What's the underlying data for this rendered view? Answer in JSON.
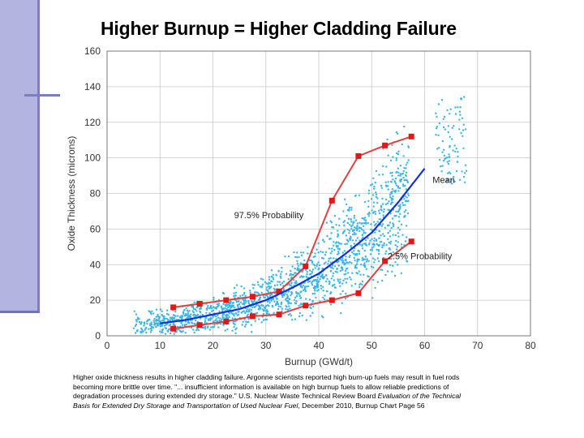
{
  "slide": {
    "title": "Higher Burnup = Higher Cladding Failure",
    "caption": {
      "line1": "Higher oxide thickness results in higher cladding failure. Argonne scientists reported high burn-up fuels may result in fuel rods",
      "line2": "becoming more brittle over time. \"... insufficient information is available on high burnup fuels to allow reliable predictions of",
      "line3_pre": "degradation processes during extended dry storage.\"  U.S. Nuclear Waste Technical Review Board ",
      "line3_italic": "Evaluation of the Technical",
      "line4_italic": "Basis for Extended Dry Storage and Transportation of Used Nuclear Fuel",
      "line4_post": ", December 2010, Burnup Chart Page 56"
    }
  },
  "colors": {
    "scatter": "#39b6e6",
    "mean": "#1530d8",
    "bound_line": "#e24040",
    "bound_marker": "#e01818",
    "lower_line": "#8a8a8a",
    "grid": "#c8c8c8",
    "accent_bar": "#b3b4df"
  },
  "chart_data": {
    "type": "scatter",
    "xlabel": "Burnup (GWd/t)",
    "ylabel": "Oxide Thickness (microns)",
    "xlim": [
      0,
      80
    ],
    "ylim": [
      0,
      160
    ],
    "x_ticks": [
      "0",
      "10",
      "20",
      "30",
      "40",
      "50",
      "60",
      "70",
      "80"
    ],
    "y_ticks": [
      "0",
      "20",
      "40",
      "60",
      "80",
      "100",
      "120",
      "140",
      "160"
    ],
    "grid": true,
    "series": [
      {
        "name": "97.5% Probability",
        "kind": "line-markers",
        "x": [
          12.5,
          17.5,
          22.5,
          27.5,
          32.5,
          37.5,
          42.5,
          47.5,
          52.5,
          57.5
        ],
        "y": [
          16,
          18,
          20,
          22,
          25,
          39,
          76,
          101,
          107,
          112
        ]
      },
      {
        "name": "Mean",
        "kind": "line",
        "x": [
          10,
          15,
          20,
          25,
          30,
          35,
          40,
          45,
          50,
          55,
          60
        ],
        "y": [
          7,
          9,
          12,
          15,
          20,
          27,
          35,
          46,
          58,
          75,
          94
        ]
      },
      {
        "name": "2.5% Probability",
        "kind": "line-markers",
        "x": [
          12.5,
          17.5,
          22.5,
          27.5,
          32.5,
          37.5,
          42.5,
          47.5,
          52.5,
          57.5
        ],
        "y": [
          4,
          6,
          8,
          11,
          12,
          17,
          20,
          24,
          42,
          53
        ]
      }
    ],
    "annotations": [
      {
        "text": "97.5% Probability",
        "x": 24,
        "y": 66
      },
      {
        "text": "Mean",
        "x": 61.5,
        "y": 86
      },
      {
        "text": "2.5% Probability",
        "x": 53,
        "y": 43
      }
    ]
  }
}
